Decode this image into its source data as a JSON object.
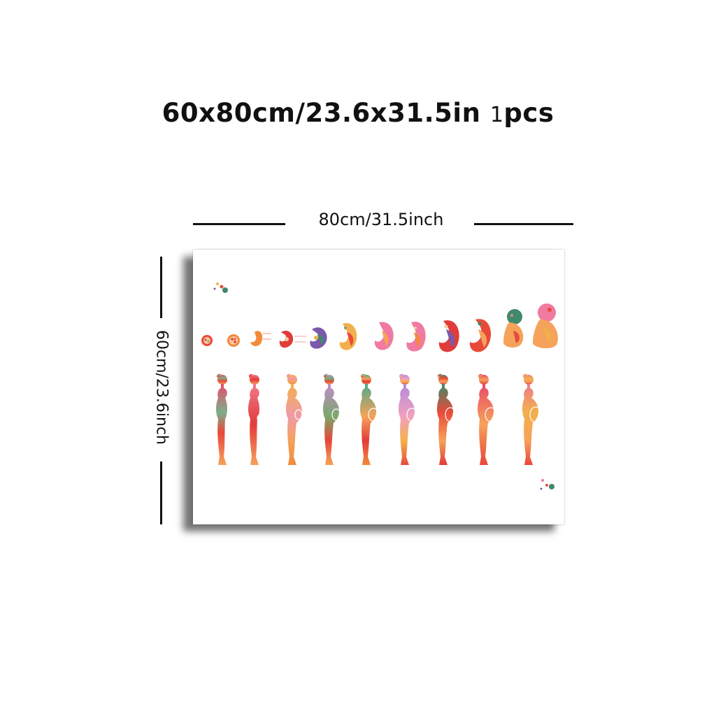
{
  "heading": {
    "size_text": "60x80cm/23.6x31.5in",
    "qty_number": "1",
    "qty_unit": "pcs"
  },
  "dimensions": {
    "width_label": "80cm/31.5inch",
    "height_label": "60cm/23.6inch"
  },
  "artwork": {
    "description_colors": [
      "#e84a3a",
      "#f5a25a",
      "#7a5aa8",
      "#3f8a6b",
      "#f07aa0",
      "#f2c94c"
    ],
    "embryo_stage_count": 12,
    "silhouette_count": 9
  }
}
